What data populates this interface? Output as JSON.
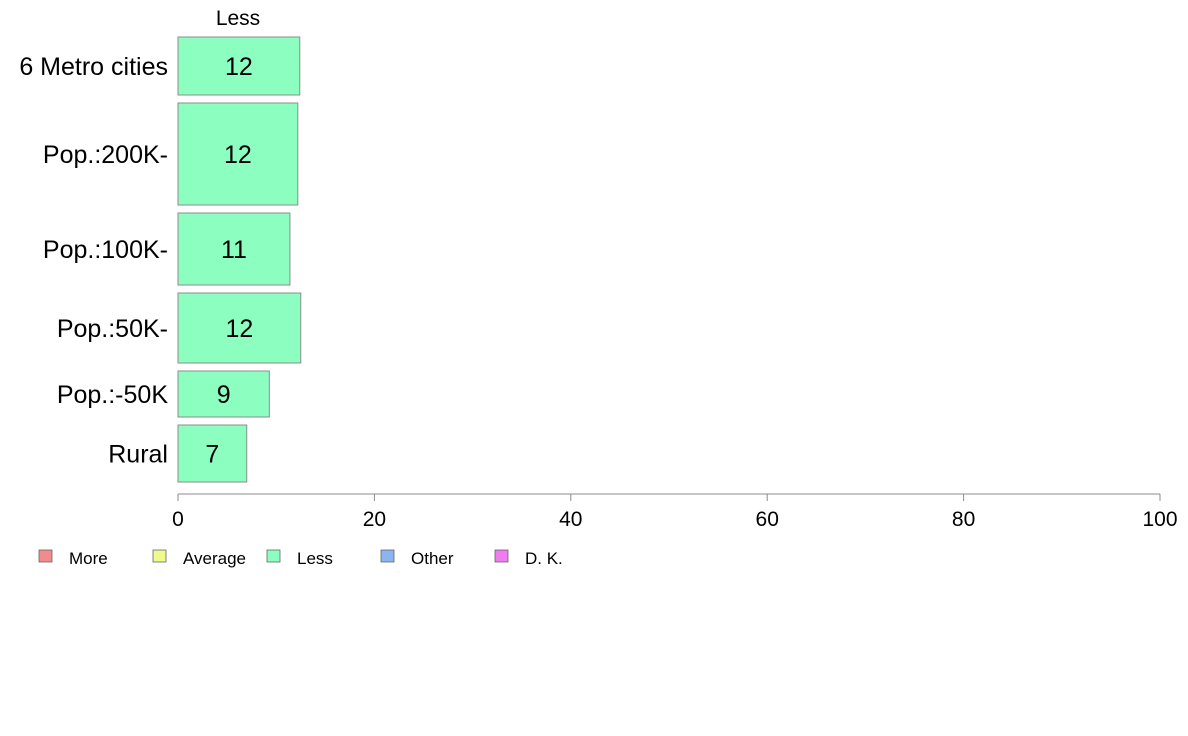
{
  "chart_data": {
    "type": "bar",
    "orientation": "horizontal",
    "column_header": "Less",
    "categories": [
      "6 Metro cities",
      "Pop.:200K-",
      "Pop.:100K-",
      "Pop.:50K-",
      "Pop.:-50K",
      "Rural"
    ],
    "series": [
      {
        "name": "Less",
        "values": [
          12.4,
          12.2,
          11.4,
          12.5,
          9.3,
          7.0
        ],
        "labels": [
          "12",
          "12",
          "11",
          "12",
          "9",
          "7"
        ]
      }
    ],
    "xlim": [
      0,
      100
    ],
    "xticks": [
      0,
      20,
      40,
      60,
      80,
      100
    ],
    "xtick_labels": [
      "0",
      "20",
      "40",
      "60",
      "80",
      "100"
    ],
    "grid": false,
    "legend_position": "bottom-left",
    "legend": [
      {
        "label": "More",
        "color": "#f28b8b"
      },
      {
        "label": "Average",
        "color": "#f0fa8c"
      },
      {
        "label": "Less",
        "color": "#8cffc0"
      },
      {
        "label": "Other",
        "color": "#8cb4f0"
      },
      {
        "label": "D. K.",
        "color": "#f07cf0"
      }
    ],
    "bar_color": "#8cffc0",
    "bar_stroke": "#8c8c8c",
    "axis_color": "#8c8c8c"
  }
}
